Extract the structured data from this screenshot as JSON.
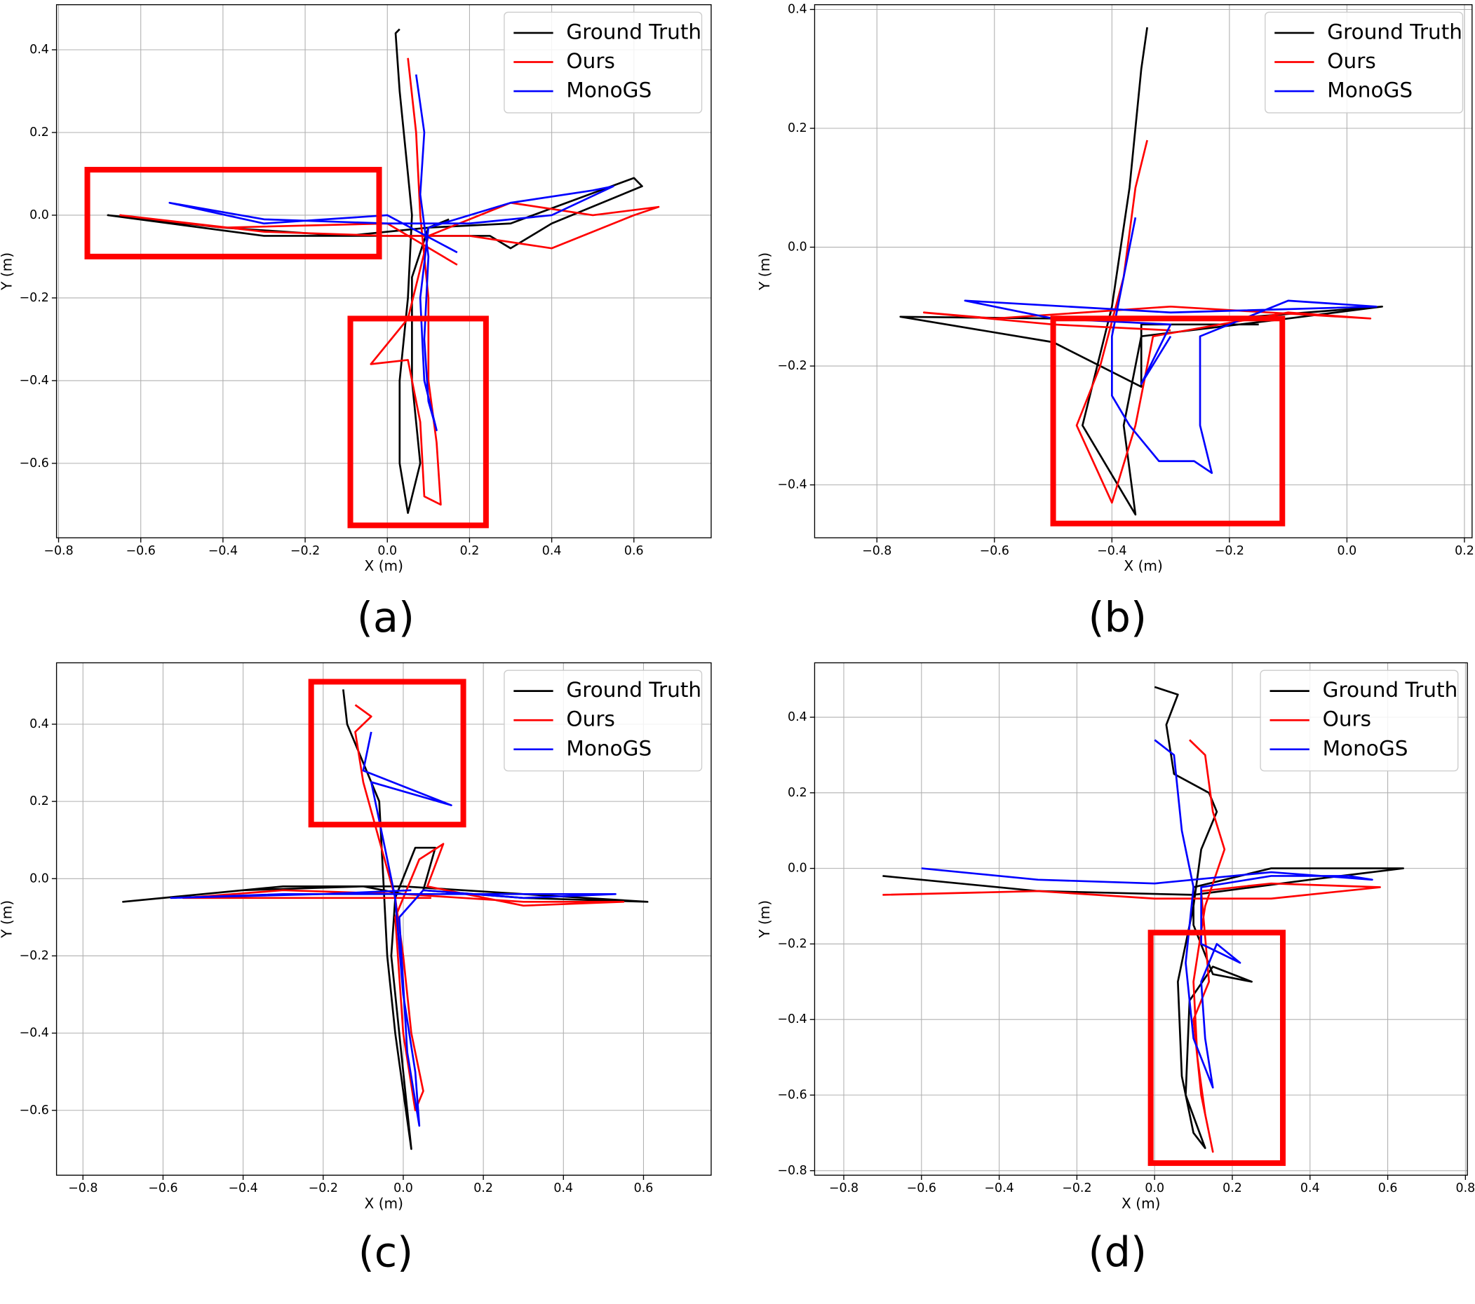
{
  "chart_data": [
    {
      "type": "line",
      "caption": "(a)",
      "x_label": "X (m)",
      "y_label": "Y (m)",
      "grid": true,
      "legend": "upper right",
      "xlim": [
        -0.805,
        0.788
      ],
      "ylim": [
        -0.78,
        0.509
      ],
      "xticks": [
        {
          "value": -0.8,
          "label": "−0.8"
        },
        {
          "value": -0.6,
          "label": "−0.6"
        },
        {
          "value": -0.4,
          "label": "−0.4"
        },
        {
          "value": -0.2,
          "label": "−0.2"
        },
        {
          "value": 0,
          "label": "0.0"
        },
        0.2,
        0.4,
        0.6
      ],
      "yticks": [
        {
          "value": -0.6,
          "label": "−0.6"
        },
        {
          "value": -0.4,
          "label": "−0.4"
        },
        {
          "value": -0.2,
          "label": "−0.2"
        },
        {
          "value": 0,
          "label": "0.0"
        },
        0.2,
        0.4
      ],
      "box_color": "#ff0000",
      "highlight_boxes": [
        {
          "xlim": [
            -0.73,
            -0.02
          ],
          "ylim": [
            -0.1,
            0.11
          ]
        },
        {
          "xlim": [
            -0.09,
            0.24
          ],
          "ylim": [
            -0.75,
            -0.25
          ]
        }
      ],
      "series": [
        {
          "name": "Ground Truth",
          "color": "#000000",
          "x": [
            0.03,
            0.02,
            0.03,
            0.05,
            0.06,
            0.05,
            0.03,
            0.03,
            0.05,
            0.08,
            0.06,
            0.06,
            0.1,
            0.3,
            0.6,
            0.62,
            0.4,
            0.3,
            0.25,
            0.0,
            -0.3,
            -0.68,
            -0.4,
            -0.1,
            0.1,
            0.15
          ],
          "values": [
            0.45,
            0.44,
            0.3,
            0.1,
            0.0,
            -0.2,
            -0.4,
            -0.6,
            -0.72,
            -0.6,
            -0.4,
            -0.15,
            -0.03,
            -0.02,
            0.09,
            0.07,
            -0.02,
            -0.08,
            -0.05,
            -0.05,
            -0.05,
            0.0,
            -0.03,
            -0.05,
            -0.03,
            -0.01
          ]
        },
        {
          "name": "Ours",
          "color": "#ff0000",
          "x": [
            0.05,
            0.07,
            0.08,
            0.1,
            0.1,
            0.12,
            0.13,
            0.09,
            0.08,
            0.05,
            -0.04,
            0.05,
            0.1,
            0.3,
            0.5,
            0.66,
            0.6,
            0.4,
            0.2,
            0.0,
            -0.3,
            -0.65,
            -0.4,
            0.0,
            0.17
          ],
          "values": [
            0.38,
            0.2,
            0.0,
            -0.2,
            -0.4,
            -0.55,
            -0.7,
            -0.68,
            -0.5,
            -0.35,
            -0.36,
            -0.25,
            -0.05,
            0.03,
            0.0,
            0.02,
            0.0,
            -0.08,
            -0.05,
            -0.05,
            -0.04,
            0.0,
            -0.03,
            -0.02,
            -0.12
          ]
        },
        {
          "name": "MonoGS",
          "color": "#0000ff",
          "x": [
            0.07,
            0.09,
            0.08,
            0.1,
            0.09,
            0.1,
            0.12,
            0.09,
            0.08,
            0.1,
            0.3,
            0.5,
            0.55,
            0.4,
            0.2,
            0.0,
            -0.3,
            -0.53,
            -0.3,
            0.0,
            0.17
          ],
          "values": [
            0.34,
            0.2,
            0.05,
            -0.1,
            -0.3,
            -0.45,
            -0.52,
            -0.4,
            -0.2,
            -0.03,
            0.03,
            0.06,
            0.07,
            0.0,
            -0.02,
            -0.02,
            -0.01,
            0.03,
            -0.02,
            0.0,
            -0.09
          ]
        }
      ]
    },
    {
      "type": "line",
      "caption": "(b)",
      "x_label": "X (m)",
      "y_label": "Y (m)",
      "grid": true,
      "legend": "upper right",
      "xlim": [
        -0.906,
        0.213
      ],
      "ylim": [
        -0.489,
        0.408
      ],
      "xticks": [
        {
          "value": -0.8,
          "label": "−0.8"
        },
        {
          "value": -0.6,
          "label": "−0.6"
        },
        {
          "value": -0.4,
          "label": "−0.4"
        },
        {
          "value": -0.2,
          "label": "−0.2"
        },
        {
          "value": 0,
          "label": "0.0"
        },
        0.2
      ],
      "yticks": [
        {
          "value": -0.4,
          "label": "−0.4"
        },
        {
          "value": -0.2,
          "label": "−0.2"
        },
        {
          "value": 0,
          "label": "0.0"
        },
        0.2,
        0.4
      ],
      "box_color": "#ff0000",
      "highlight_boxes": [
        {
          "xlim": [
            -0.5,
            -0.11
          ],
          "ylim": [
            -0.465,
            -0.12
          ]
        }
      ],
      "series": [
        {
          "name": "Ground Truth",
          "color": "#000000",
          "x": [
            -0.34,
            -0.35,
            -0.37,
            -0.4,
            -0.45,
            -0.36,
            -0.38,
            -0.35,
            -0.1,
            0.06,
            -0.2,
            -0.5,
            -0.76,
            -0.5,
            -0.35,
            -0.35,
            -0.15
          ],
          "values": [
            0.37,
            0.3,
            0.1,
            -0.1,
            -0.3,
            -0.45,
            -0.3,
            -0.15,
            -0.12,
            -0.1,
            -0.12,
            -0.12,
            -0.117,
            -0.16,
            -0.235,
            -0.13,
            -0.13
          ]
        },
        {
          "name": "Ours",
          "color": "#ff0000",
          "x": [
            -0.34,
            -0.36,
            -0.38,
            -0.42,
            -0.46,
            -0.4,
            -0.36,
            -0.33,
            -0.1,
            0.04,
            -0.3,
            -0.6,
            -0.72,
            -0.5,
            -0.3
          ],
          "values": [
            0.18,
            0.1,
            -0.05,
            -0.2,
            -0.3,
            -0.43,
            -0.3,
            -0.15,
            -0.11,
            -0.12,
            -0.1,
            -0.12,
            -0.11,
            -0.13,
            -0.14
          ]
        },
        {
          "name": "MonoGS",
          "color": "#0000ff",
          "x": [
            -0.36,
            -0.38,
            -0.4,
            -0.4,
            -0.37,
            -0.32,
            -0.26,
            -0.23,
            -0.25,
            -0.25,
            -0.1,
            0.05,
            -0.3,
            -0.65,
            -0.5,
            -0.3,
            -0.35,
            -0.3
          ],
          "values": [
            0.05,
            -0.05,
            -0.15,
            -0.25,
            -0.3,
            -0.36,
            -0.36,
            -0.38,
            -0.3,
            -0.15,
            -0.09,
            -0.1,
            -0.11,
            -0.09,
            -0.12,
            -0.13,
            -0.23,
            -0.15
          ]
        }
      ]
    },
    {
      "type": "line",
      "caption": "(c)",
      "x_label": "X (m)",
      "y_label": "Y (m)",
      "grid": true,
      "legend": "upper right",
      "xlim": [
        -0.866,
        0.769
      ],
      "ylim": [
        -0.768,
        0.559
      ],
      "xticks": [
        {
          "value": -0.8,
          "label": "−0.8"
        },
        {
          "value": -0.6,
          "label": "−0.6"
        },
        {
          "value": -0.4,
          "label": "−0.4"
        },
        {
          "value": -0.2,
          "label": "−0.2"
        },
        {
          "value": 0,
          "label": "0.0"
        },
        0.2,
        0.4,
        0.6
      ],
      "yticks": [
        {
          "value": -0.6,
          "label": "−0.6"
        },
        {
          "value": -0.4,
          "label": "−0.4"
        },
        {
          "value": -0.2,
          "label": "−0.2"
        },
        {
          "value": 0,
          "label": "0.0"
        },
        0.2,
        0.4
      ],
      "box_color": "#ff0000",
      "highlight_boxes": [
        {
          "xlim": [
            -0.23,
            0.15
          ],
          "ylim": [
            0.14,
            0.51
          ]
        }
      ],
      "series": [
        {
          "name": "Ground Truth",
          "color": "#000000",
          "x": [
            -0.15,
            -0.14,
            -0.1,
            -0.06,
            -0.05,
            -0.04,
            -0.02,
            0.0,
            0.02,
            0.0,
            -0.03,
            -0.02,
            0.03,
            0.08,
            0.05,
            0.3,
            0.61,
            0.3,
            0.0,
            -0.3,
            -0.7,
            -0.4,
            -0.1,
            0.0
          ],
          "values": [
            0.49,
            0.4,
            0.3,
            0.2,
            0.0,
            -0.2,
            -0.4,
            -0.55,
            -0.7,
            -0.5,
            -0.2,
            -0.05,
            0.08,
            0.08,
            -0.03,
            -0.05,
            -0.06,
            -0.04,
            -0.02,
            -0.02,
            -0.06,
            -0.03,
            -0.02,
            -0.04
          ]
        },
        {
          "name": "Ours",
          "color": "#ff0000",
          "x": [
            -0.12,
            -0.08,
            -0.12,
            -0.1,
            -0.06,
            -0.02,
            0.0,
            0.02,
            0.05,
            0.03,
            0.0,
            -0.02,
            0.04,
            0.1,
            0.06,
            0.3,
            0.55,
            0.3,
            0.0,
            -0.3,
            -0.55,
            -0.2,
            0.07
          ],
          "values": [
            0.45,
            0.42,
            0.38,
            0.25,
            0.1,
            -0.05,
            -0.2,
            -0.4,
            -0.55,
            -0.6,
            -0.4,
            -0.1,
            0.05,
            0.09,
            -0.02,
            -0.07,
            -0.06,
            -0.06,
            -0.04,
            -0.03,
            -0.05,
            -0.05,
            -0.05
          ]
        },
        {
          "name": "MonoGS",
          "color": "#0000ff",
          "x": [
            -0.08,
            -0.1,
            0.12,
            -0.08,
            -0.05,
            -0.02,
            0.0,
            0.03,
            0.04,
            0.01,
            -0.01,
            0.05,
            0.3,
            0.53,
            0.3,
            0.0,
            -0.3,
            -0.58,
            -0.2,
            0.02
          ],
          "values": [
            0.38,
            0.28,
            0.19,
            0.25,
            0.1,
            -0.05,
            -0.3,
            -0.5,
            -0.64,
            -0.45,
            -0.1,
            -0.03,
            -0.05,
            -0.04,
            -0.04,
            -0.04,
            -0.04,
            -0.05,
            -0.04,
            -0.03
          ]
        }
      ]
    },
    {
      "type": "line",
      "caption": "(d)",
      "x_label": "X (m)",
      "y_label": "Y (m)",
      "grid": true,
      "legend": "upper right",
      "xlim": [
        -0.875,
        0.805
      ],
      "ylim": [
        -0.812,
        0.544
      ],
      "xticks": [
        {
          "value": -0.8,
          "label": "−0.8"
        },
        {
          "value": -0.6,
          "label": "−0.6"
        },
        {
          "value": -0.4,
          "label": "−0.4"
        },
        {
          "value": -0.2,
          "label": "−0.2"
        },
        {
          "value": 0,
          "label": "0.0"
        },
        0.2,
        0.4,
        0.6,
        0.8
      ],
      "yticks": [
        {
          "value": -0.8,
          "label": "−0.8"
        },
        {
          "value": -0.6,
          "label": "−0.6"
        },
        {
          "value": -0.4,
          "label": "−0.4"
        },
        {
          "value": -0.2,
          "label": "−0.2"
        },
        {
          "value": 0,
          "label": "0.0"
        },
        0.2,
        0.4
      ],
      "box_color": "#ff0000",
      "highlight_boxes": [
        {
          "xlim": [
            -0.01,
            0.33
          ],
          "ylim": [
            -0.78,
            -0.17
          ]
        }
      ],
      "series": [
        {
          "name": "Ground Truth",
          "color": "#000000",
          "x": [
            0.0,
            0.06,
            0.03,
            0.05,
            0.14,
            0.16,
            0.12,
            0.1,
            0.08,
            0.06,
            0.07,
            0.1,
            0.13,
            0.08,
            0.09,
            0.15,
            0.25,
            0.15,
            0.1,
            0.1,
            0.3,
            0.5,
            0.64,
            0.4,
            0.1,
            -0.3,
            -0.7
          ],
          "values": [
            0.48,
            0.46,
            0.38,
            0.25,
            0.2,
            0.15,
            0.05,
            -0.1,
            -0.2,
            -0.3,
            -0.55,
            -0.7,
            -0.74,
            -0.6,
            -0.35,
            -0.26,
            -0.3,
            -0.28,
            -0.15,
            -0.05,
            0.0,
            0.0,
            0.0,
            -0.03,
            -0.07,
            -0.06,
            -0.02
          ]
        },
        {
          "name": "Ours",
          "color": "#ff0000",
          "x": [
            0.09,
            0.13,
            0.15,
            0.18,
            0.13,
            0.1,
            0.11,
            0.13,
            0.15,
            0.12,
            0.1,
            0.14,
            0.12,
            0.3,
            0.58,
            0.3,
            0.0,
            -0.3,
            -0.7
          ],
          "values": [
            0.34,
            0.3,
            0.15,
            0.05,
            -0.1,
            -0.3,
            -0.5,
            -0.65,
            -0.75,
            -0.6,
            -0.4,
            -0.3,
            -0.06,
            -0.04,
            -0.05,
            -0.08,
            -0.08,
            -0.06,
            -0.07
          ]
        },
        {
          "name": "MonoGS",
          "color": "#0000ff",
          "x": [
            0.0,
            0.05,
            0.07,
            0.1,
            0.08,
            0.1,
            0.15,
            0.13,
            0.12,
            0.16,
            0.22,
            0.12,
            0.12,
            0.3,
            0.5,
            0.56,
            0.3,
            0.0,
            -0.3,
            -0.6
          ],
          "values": [
            0.34,
            0.3,
            0.1,
            -0.05,
            -0.25,
            -0.45,
            -0.58,
            -0.45,
            -0.3,
            -0.2,
            -0.25,
            -0.2,
            -0.05,
            -0.02,
            -0.02,
            -0.03,
            -0.01,
            -0.04,
            -0.03,
            0.0
          ]
        }
      ]
    }
  ]
}
